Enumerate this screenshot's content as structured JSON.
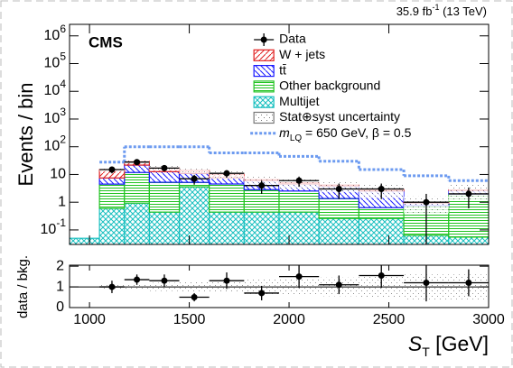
{
  "chart_data": {
    "type": "stacked-histogram",
    "label": "CMS",
    "lumi": {
      "text": "35.9 fb",
      "exponent": "-1",
      "energy": " (13 TeV)"
    },
    "ylabel": "Events / bin",
    "xlabel": {
      "symbol": "S",
      "subscript": "T",
      "unit": " [GeV]"
    },
    "xlim": [
      900,
      3000
    ],
    "xticks": [
      1000,
      1500,
      2000,
      2500,
      3000
    ],
    "ylim": [
      0.03,
      2600000
    ],
    "log_y": true,
    "yticks": [
      {
        "value": 0.1,
        "label": "10",
        "exponent": "-1"
      },
      1,
      10,
      {
        "value": 100,
        "label": "10",
        "exponent": "2"
      },
      {
        "value": 1000,
        "label": "10",
        "exponent": "3"
      },
      {
        "value": 10000,
        "label": "10",
        "exponent": "4"
      },
      {
        "value": 100000,
        "label": "10",
        "exponent": "5"
      },
      {
        "value": 1000000,
        "label": "10",
        "exponent": "6"
      }
    ],
    "legend": "upper right",
    "bins": [
      900,
      1050,
      1175,
      1300,
      1450,
      1600,
      1775,
      1950,
      2150,
      2350,
      2575,
      2800,
      3000
    ],
    "data": {
      "name": "Data",
      "color": "#000000",
      "values": [
        null,
        15,
        28,
        17,
        7,
        11,
        4,
        6,
        3,
        3,
        1,
        2
      ],
      "errors": [
        null,
        4,
        5,
        4,
        2.7,
        3.3,
        2,
        2.4,
        1.7,
        1.7,
        1,
        1.4
      ]
    },
    "series": [
      {
        "name": "W + jets",
        "color": "#e02020",
        "hatch": "diag",
        "values": [
          0,
          7.5,
          8,
          4.4,
          3,
          2.5,
          0.5,
          0.5,
          0.3,
          0.3,
          0.07,
          0.1
        ]
      },
      {
        "name": "tt̄",
        "color": "#1a1aff",
        "hatch": "antidiag",
        "values": [
          0,
          3.0,
          10,
          7.4,
          5.8,
          3.0,
          3.2,
          2,
          2.5,
          1.9,
          0.18,
          0.7
        ]
      },
      {
        "name": "Other background",
        "color": "#22c322",
        "hatch": "horizontal",
        "values": [
          0,
          3.9,
          10.9,
          4.8,
          1.6,
          4.1,
          2.4,
          2.1,
          1.1,
          0.38,
          0.69,
          1.9
        ]
      },
      {
        "name": "Multijet",
        "color": "#19c0c0",
        "hatch": "cross",
        "values": [
          0.05,
          0.6,
          0.93,
          0.44,
          3.6,
          0.44,
          0.44,
          0.44,
          0.26,
          0.26,
          0.064,
          0.055
        ]
      }
    ],
    "uncertainty_label": "Stat⊕syst uncertainty",
    "uncertainty_color": "#777777",
    "signal": {
      "name": {
        "symbol": "m",
        "subscript": "LQ",
        "text": " = 650 GeV, β = 0.5"
      },
      "color": "#6d9bf0",
      "values": [
        null,
        28,
        100,
        100,
        100,
        60,
        60,
        45,
        30,
        15,
        9,
        6
      ]
    },
    "ratio": {
      "ylabel": "data / bkg.",
      "ylim": [
        0,
        2.05
      ],
      "yticks": [
        0,
        1,
        2
      ],
      "reference_line": 1,
      "values": [
        null,
        1.0,
        1.35,
        1.3,
        0.5,
        1.3,
        0.7,
        1.5,
        1.1,
        1.55,
        1.2,
        1.2
      ],
      "errors": [
        null,
        0.3,
        0.25,
        0.3,
        0.2,
        0.4,
        0.35,
        0.55,
        0.45,
        0.6,
        0.9,
        0.65
      ],
      "uncertainty": [
        null,
        0.15,
        0.15,
        0.2,
        0.25,
        0.3,
        0.35,
        0.4,
        0.45,
        0.5,
        0.6,
        0.6
      ]
    }
  }
}
